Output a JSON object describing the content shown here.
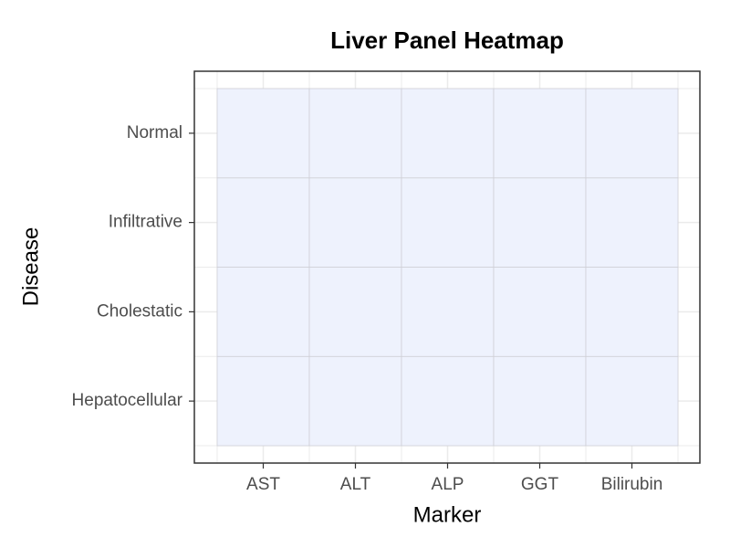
{
  "chart_data": {
    "type": "heatmap",
    "title": "Liver Panel Heatmap",
    "x_label": "Marker",
    "y_label": "Disease",
    "x_categories": [
      "AST",
      "ALT",
      "ALP",
      "GGT",
      "Bilirubin"
    ],
    "y_categories": [
      "Hepatocellular",
      "Cholestatic",
      "Infiltrative",
      "Normal"
    ],
    "cell_colors": [
      [
        "#eef2fd",
        "#eef2fd",
        "#eef2fd",
        "#eef2fd",
        "#eef2fd"
      ],
      [
        "#eef2fd",
        "#eef2fd",
        "#eef2fd",
        "#eef2fd",
        "#eef2fd"
      ],
      [
        "#eef2fd",
        "#eef2fd",
        "#eef2fd",
        "#eef2fd",
        "#eef2fd"
      ],
      [
        "#eef2fd",
        "#eef2fd",
        "#eef2fd",
        "#eef2fd",
        "#eef2fd"
      ]
    ],
    "grid": true
  }
}
